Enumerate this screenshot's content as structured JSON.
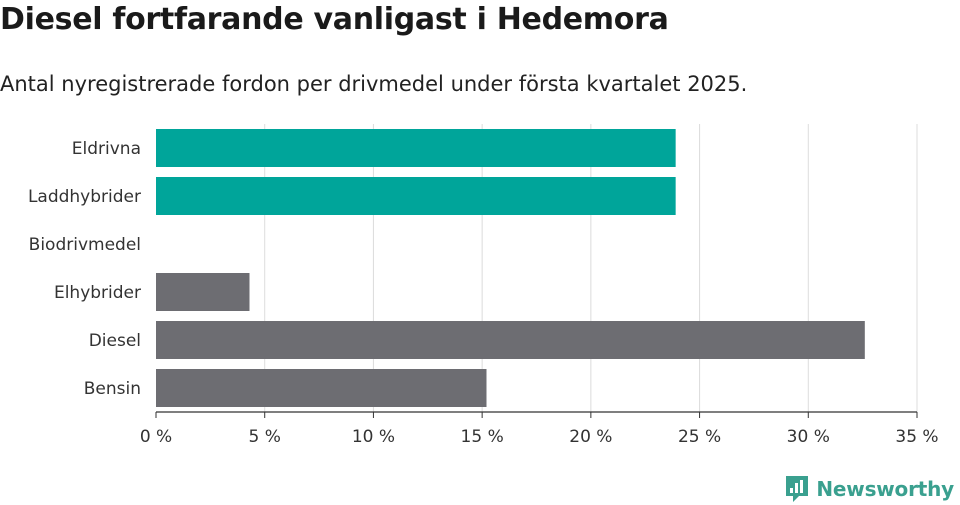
{
  "header": {
    "title": "Diesel fortfarande vanligast i Hedemora",
    "subtitle": "Antal nyregistrerade fordon per drivmedel under första kvartalet 2025."
  },
  "branding": {
    "name": "Newsworthy",
    "color": "#3aa08f",
    "icon": "newsworthy-logo-icon"
  },
  "chart_data": {
    "type": "bar",
    "orientation": "horizontal",
    "categories": [
      "Eldrivna",
      "Laddhybrider",
      "Biodrivmedel",
      "Elhybrider",
      "Diesel",
      "Bensin"
    ],
    "values": [
      23.9,
      23.9,
      0,
      4.3,
      32.6,
      15.2
    ],
    "colors": [
      "#00a59a",
      "#00a59a",
      "#00a59a",
      "#6d6d72",
      "#6d6d72",
      "#6d6d72"
    ],
    "x_ticks": [
      0,
      5,
      10,
      15,
      20,
      25,
      30,
      35
    ],
    "x_tick_labels": [
      "0 %",
      "5 %",
      "10 %",
      "15 %",
      "20 %",
      "25 %",
      "30 %",
      "35 %"
    ],
    "xlim": [
      0,
      35
    ],
    "grid": true
  }
}
